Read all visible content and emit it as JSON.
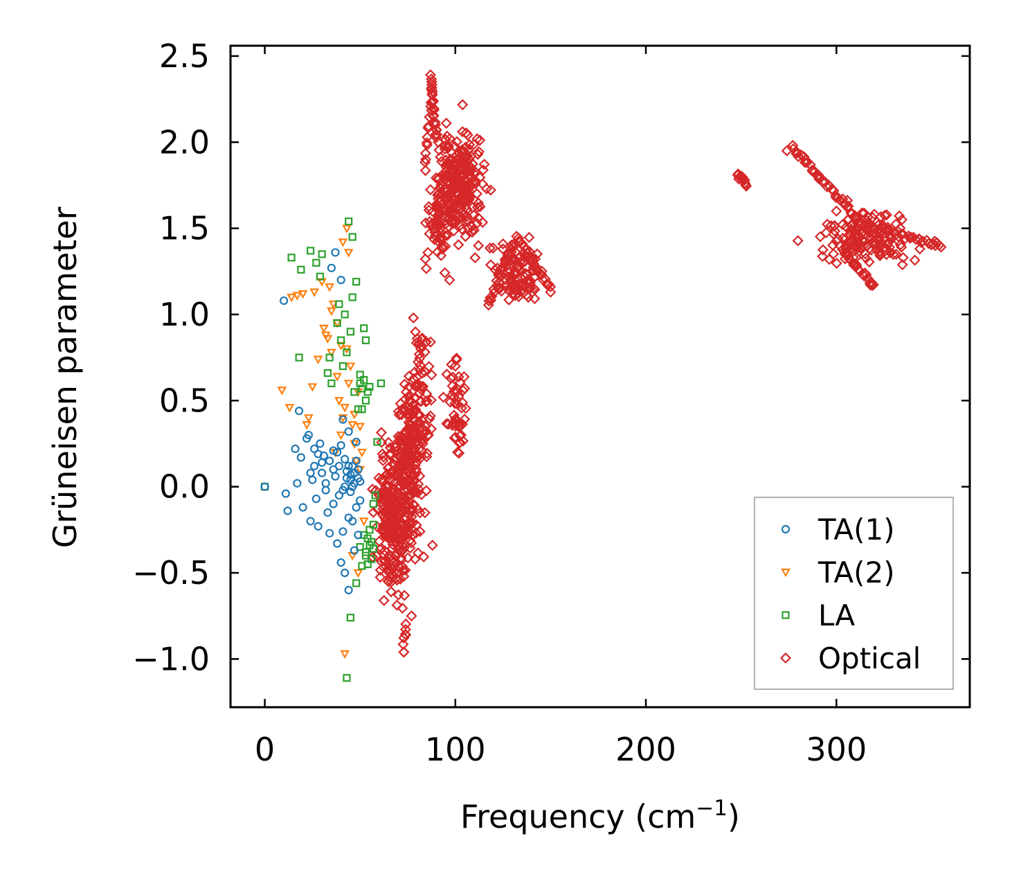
{
  "chart_data": {
    "type": "scatter",
    "title": "",
    "xlabel": "Frequency (cm",
    "xlabel_sup": "−1",
    "xlabel_close": ")",
    "ylabel": "Grüneisen parameter",
    "xlim": [
      -18,
      370
    ],
    "ylim": [
      -1.28,
      2.56
    ],
    "xticks": [
      0,
      100,
      200,
      300
    ],
    "xtick_labels": [
      "0",
      "100",
      "200",
      "300"
    ],
    "yticks": [
      -1.0,
      -0.5,
      0.0,
      0.5,
      1.0,
      1.5,
      2.0,
      2.5
    ],
    "ytick_labels": [
      "−1.0",
      "−0.5",
      "0.0",
      "0.5",
      "1.0",
      "1.5",
      "2.0",
      "2.5"
    ],
    "legend_position": "lower-right",
    "series": [
      {
        "name": "TA(1)",
        "marker": "circle",
        "color": "#1f77b4",
        "points": [
          [
            0,
            0
          ],
          [
            10,
            1.08
          ],
          [
            11,
            -0.04
          ],
          [
            12,
            -0.14
          ],
          [
            16,
            0.22
          ],
          [
            17,
            0.02
          ],
          [
            18,
            0.44
          ],
          [
            19,
            0.17
          ],
          [
            20,
            -0.12
          ],
          [
            22,
            0.28
          ],
          [
            23,
            0.3
          ],
          [
            24,
            -0.2
          ],
          [
            25,
            0.04
          ],
          [
            26,
            0.12
          ],
          [
            27,
            -0.07
          ],
          [
            28,
            -0.23
          ],
          [
            29,
            0.25
          ],
          [
            30,
            0.08
          ],
          [
            31,
            0.18
          ],
          [
            32,
            0.02
          ],
          [
            33,
            -0.15
          ],
          [
            34,
            -0.27
          ],
          [
            35,
            1.27
          ],
          [
            36,
            0.21
          ],
          [
            37,
            1.36
          ],
          [
            37,
            0.06
          ],
          [
            38,
            -0.33
          ],
          [
            39,
            0.12
          ],
          [
            40,
            -0.44
          ],
          [
            40,
            1.2
          ],
          [
            41,
            0.39
          ],
          [
            42,
            0.16
          ],
          [
            42,
            -0.5
          ],
          [
            43,
            0.09
          ],
          [
            44,
            -0.6
          ],
          [
            44,
            0.32
          ],
          [
            45,
            0.04
          ],
          [
            46,
            -0.2
          ],
          [
            46,
            0.12
          ],
          [
            47,
            -0.37
          ],
          [
            47,
            0.08
          ],
          [
            48,
            0.26
          ],
          [
            48,
            -0.12
          ],
          [
            49,
            0.1
          ],
          [
            49,
            -0.28
          ],
          [
            50,
            0.03
          ],
          [
            50,
            -0.08
          ],
          [
            47,
            0.02
          ],
          [
            45,
            0.07
          ],
          [
            43,
            0.05
          ],
          [
            41,
            -0.02
          ],
          [
            39,
            -0.05
          ],
          [
            36,
            0.1
          ],
          [
            34,
            0.15
          ],
          [
            32,
            -0.02
          ],
          [
            30,
            0.14
          ],
          [
            28,
            0.19
          ],
          [
            26,
            0.22
          ],
          [
            24,
            0.08
          ],
          [
            38,
            0.2
          ],
          [
            40,
            0.24
          ],
          [
            36,
            -0.1
          ],
          [
            41,
            -0.26
          ],
          [
            44,
            -0.18
          ],
          [
            48,
            0.15
          ],
          [
            42,
            0.0
          ],
          [
            46,
            0.0
          ],
          [
            44,
            0.12
          ],
          [
            49,
            0.05
          ],
          [
            45,
            -0.03
          ]
        ]
      },
      {
        "name": "TA(2)",
        "marker": "triangle-down",
        "color": "#ff7f0e",
        "points": [
          [
            9,
            0.56
          ],
          [
            13,
            0.46
          ],
          [
            14,
            1.1
          ],
          [
            17,
            1.11
          ],
          [
            20,
            1.12
          ],
          [
            22,
            0.36
          ],
          [
            23,
            0.4
          ],
          [
            25,
            0.58
          ],
          [
            26,
            1.13
          ],
          [
            28,
            0.74
          ],
          [
            30,
            1.19
          ],
          [
            31,
            0.92
          ],
          [
            32,
            0.88
          ],
          [
            33,
            0.86
          ],
          [
            34,
            1.16
          ],
          [
            35,
            1.02
          ],
          [
            36,
            1.06
          ],
          [
            37,
            0.2
          ],
          [
            38,
            0.64
          ],
          [
            39,
            0.5
          ],
          [
            40,
            0.82
          ],
          [
            41,
            0.4
          ],
          [
            41,
            1.42
          ],
          [
            42,
            -0.97
          ],
          [
            43,
            0.8
          ],
          [
            43,
            1.5
          ],
          [
            44,
            0.6
          ],
          [
            44,
            1.36
          ],
          [
            45,
            0.7
          ],
          [
            46,
            0.36
          ],
          [
            46,
            -0.4
          ],
          [
            47,
            0.25
          ],
          [
            48,
            0.15
          ],
          [
            49,
            0.55
          ],
          [
            49,
            -0.5
          ],
          [
            50,
            0.1
          ],
          [
            51,
            0.2
          ],
          [
            52,
            -0.2
          ],
          [
            35,
            0.78
          ],
          [
            38,
            0.95
          ],
          [
            40,
            0.3
          ],
          [
            42,
            0.46
          ],
          [
            47,
            0.42
          ],
          [
            50,
            0.35
          ]
        ]
      },
      {
        "name": "LA",
        "marker": "square",
        "color": "#2ca02c",
        "points": [
          [
            0,
            0
          ],
          [
            14,
            1.33
          ],
          [
            18,
            0.75
          ],
          [
            19,
            1.26
          ],
          [
            24,
            1.37
          ],
          [
            27,
            1.3
          ],
          [
            29,
            1.22
          ],
          [
            30,
            1.35
          ],
          [
            33,
            0.66
          ],
          [
            34,
            0.75
          ],
          [
            35,
            0.6
          ],
          [
            38,
            0.95
          ],
          [
            39,
            1.06
          ],
          [
            40,
            0.85
          ],
          [
            41,
            0.7
          ],
          [
            42,
            1.0
          ],
          [
            43,
            -1.11
          ],
          [
            43,
            0.78
          ],
          [
            44,
            1.54
          ],
          [
            45,
            -0.76
          ],
          [
            45,
            0.9
          ],
          [
            46,
            1.45
          ],
          [
            46,
            1.1
          ],
          [
            47,
            0.55
          ],
          [
            48,
            -0.56
          ],
          [
            48,
            1.19
          ],
          [
            49,
            0.45
          ],
          [
            50,
            0.6
          ],
          [
            51,
            0.57
          ],
          [
            52,
            0.62
          ],
          [
            52,
            0.92
          ],
          [
            53,
            -0.38
          ],
          [
            53,
            0.85
          ],
          [
            54,
            -0.3
          ],
          [
            55,
            -0.34
          ],
          [
            56,
            -0.42
          ],
          [
            57,
            -0.22
          ],
          [
            57,
            -0.1
          ],
          [
            58,
            -0.05
          ],
          [
            59,
            0.26
          ],
          [
            61,
            0.6
          ],
          [
            50,
            -0.35
          ],
          [
            51,
            -0.46
          ],
          [
            52,
            -0.28
          ],
          [
            53,
            -0.4
          ],
          [
            54,
            -0.45
          ],
          [
            55,
            -0.25
          ],
          [
            56,
            -0.32
          ],
          [
            57,
            -0.36
          ],
          [
            54,
            0.55
          ],
          [
            55,
            0.58
          ],
          [
            53,
            0.5
          ],
          [
            51,
            0.45
          ],
          [
            50,
            0.65
          ]
        ]
      },
      {
        "name": "Optical",
        "marker": "diamond",
        "color": "#d62728",
        "clusters": [
          {
            "center": [
              67,
              -0.2
            ],
            "spread": [
              8,
              0.4
            ],
            "n": 240
          },
          {
            "center": [
              76,
              0.1
            ],
            "spread": [
              7,
              0.5
            ],
            "n": 210
          },
          {
            "center": [
              82,
              0.55
            ],
            "spread": [
              5,
              0.45
            ],
            "n": 60
          },
          {
            "center": [
              103,
              1.75
            ],
            "spread": [
              12,
              0.32
            ],
            "n": 240
          },
          {
            "center": [
              92,
              1.55
            ],
            "spread": [
              7,
              0.3
            ],
            "n": 70
          },
          {
            "center": [
              133,
              1.25
            ],
            "spread": [
              12,
              0.16
            ],
            "n": 110
          },
          {
            "center": [
              100,
              0.45
            ],
            "spread": [
              5,
              0.3
            ],
            "n": 50
          },
          {
            "center": [
              315,
              1.45
            ],
            "spread": [
              26,
              0.15
            ],
            "n": 150
          }
        ],
        "lines": [
          {
            "from": [
              87,
              2.38
            ],
            "to": [
              90,
              2.02
            ],
            "n": 24
          },
          {
            "from": [
              88,
              2.27
            ],
            "to": [
              84,
              1.84
            ],
            "n": 14
          },
          {
            "from": [
              248,
              1.82
            ],
            "to": [
              253,
              1.75
            ],
            "n": 12
          },
          {
            "from": [
              277,
              1.97
            ],
            "to": [
              312,
              1.55
            ],
            "n": 40
          },
          {
            "from": [
              311,
              1.52
            ],
            "to": [
              355,
              1.4
            ],
            "n": 34
          },
          {
            "from": [
              305,
              1.35
            ],
            "to": [
              320,
              1.16
            ],
            "n": 24
          },
          {
            "from": [
              132,
              1.45
            ],
            "to": [
              150,
              1.15
            ],
            "n": 24
          },
          {
            "from": [
              117,
              1.05
            ],
            "to": [
              130,
              1.4
            ],
            "n": 22
          },
          {
            "from": [
              73,
              -0.95
            ],
            "to": [
              74,
              -0.8
            ],
            "n": 6
          },
          {
            "from": [
              70,
              0.28
            ],
            "to": [
              78,
              0.28
            ],
            "n": 6
          }
        ],
        "points": [
          [
            73,
            -0.96
          ],
          [
            74,
            -0.86
          ],
          [
            77,
            -0.75
          ],
          [
            87,
            0.84
          ],
          [
            88,
            -0.34
          ],
          [
            91,
            1.62
          ],
          [
            97,
            1.2
          ],
          [
            100,
            0.7
          ],
          [
            103,
            0.3
          ],
          [
            125,
            1.38
          ],
          [
            150,
            1.13
          ],
          [
            352,
            1.4
          ],
          [
            274,
            1.95
          ],
          [
            300,
            1.6
          ],
          [
            318,
            1.17
          ],
          [
            78,
            0.98
          ]
        ]
      }
    ]
  }
}
